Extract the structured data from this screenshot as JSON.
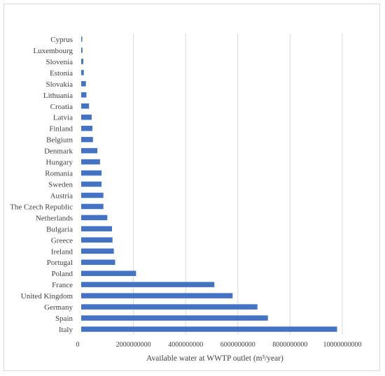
{
  "colors": {
    "bar": "#4472c4",
    "grid": "#d9d9d9",
    "text": "#404040",
    "frame": "#d9d9d9"
  },
  "chart_data": {
    "type": "bar",
    "orientation": "horizontal",
    "categories": [
      "Italy",
      "Spain",
      "Germany",
      "United Kingdom",
      "France",
      "Poland",
      "Portugal",
      "Ireland",
      "Greece",
      "Bulgaria",
      "Netherlands",
      "The Czech Republic",
      "Austria",
      "Sweden",
      "Romania",
      "Hungary",
      "Denmark",
      "Belgium",
      "Finland",
      "Latvia",
      "Croatia",
      "Lithuania",
      "Slovakia",
      "Estonia",
      "Slovenia",
      "Luxembourg",
      "Cyprus"
    ],
    "values": [
      9800000000,
      7150000000,
      6750000000,
      5800000000,
      5100000000,
      2100000000,
      1300000000,
      1250000000,
      1200000000,
      1180000000,
      1000000000,
      850000000,
      850000000,
      780000000,
      780000000,
      720000000,
      620000000,
      450000000,
      430000000,
      400000000,
      300000000,
      200000000,
      180000000,
      100000000,
      80000000,
      50000000,
      40000000
    ],
    "title": "",
    "xlabel": "Available water at WWTP outlet (m³/year)",
    "ylabel": "",
    "xlim": [
      0,
      10000000000
    ],
    "xticks": [
      "0",
      "2000000000",
      "4000000000",
      "6000000000",
      "8000000000",
      "10000000000"
    ],
    "grid": "vertical",
    "legend": "none"
  }
}
